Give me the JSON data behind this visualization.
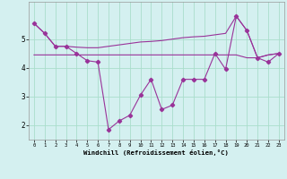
{
  "x": [
    0,
    1,
    2,
    3,
    4,
    5,
    6,
    7,
    8,
    9,
    10,
    11,
    12,
    13,
    14,
    15,
    16,
    17,
    18,
    19,
    20,
    21,
    22,
    23
  ],
  "y_main": [
    5.55,
    5.2,
    4.75,
    4.75,
    4.5,
    4.25,
    4.2,
    1.85,
    2.15,
    2.35,
    3.05,
    3.6,
    2.55,
    2.7,
    3.6,
    3.6,
    3.6,
    4.5,
    3.95,
    5.8,
    5.3,
    4.35,
    4.2,
    4.5
  ],
  "y_upper": [
    5.55,
    5.2,
    4.75,
    4.75,
    4.72,
    4.7,
    4.7,
    4.75,
    4.8,
    4.85,
    4.9,
    4.92,
    4.95,
    5.0,
    5.05,
    5.08,
    5.1,
    5.15,
    5.2,
    5.8,
    5.3,
    4.35,
    4.45,
    4.5
  ],
  "y_flat": [
    4.45,
    4.45,
    4.45,
    4.45,
    4.45,
    4.45,
    4.45,
    4.45,
    4.45,
    4.45,
    4.45,
    4.45,
    4.45,
    4.45,
    4.45,
    4.45,
    4.45,
    4.45,
    4.45,
    4.45,
    4.35,
    4.35,
    4.45,
    4.5
  ],
  "line_color": "#993399",
  "bg_color": "#d4f0f0",
  "grid_color": "#aaddcc",
  "xlabel": "Windchill (Refroidissement éolien,°C)",
  "ylim": [
    1.5,
    6.3
  ],
  "xlim": [
    -0.5,
    23.5
  ],
  "yticks": [
    2,
    3,
    4,
    5
  ],
  "xticks": [
    0,
    1,
    2,
    3,
    4,
    5,
    6,
    7,
    8,
    9,
    10,
    11,
    12,
    13,
    14,
    15,
    16,
    17,
    18,
    19,
    20,
    21,
    22,
    23
  ]
}
